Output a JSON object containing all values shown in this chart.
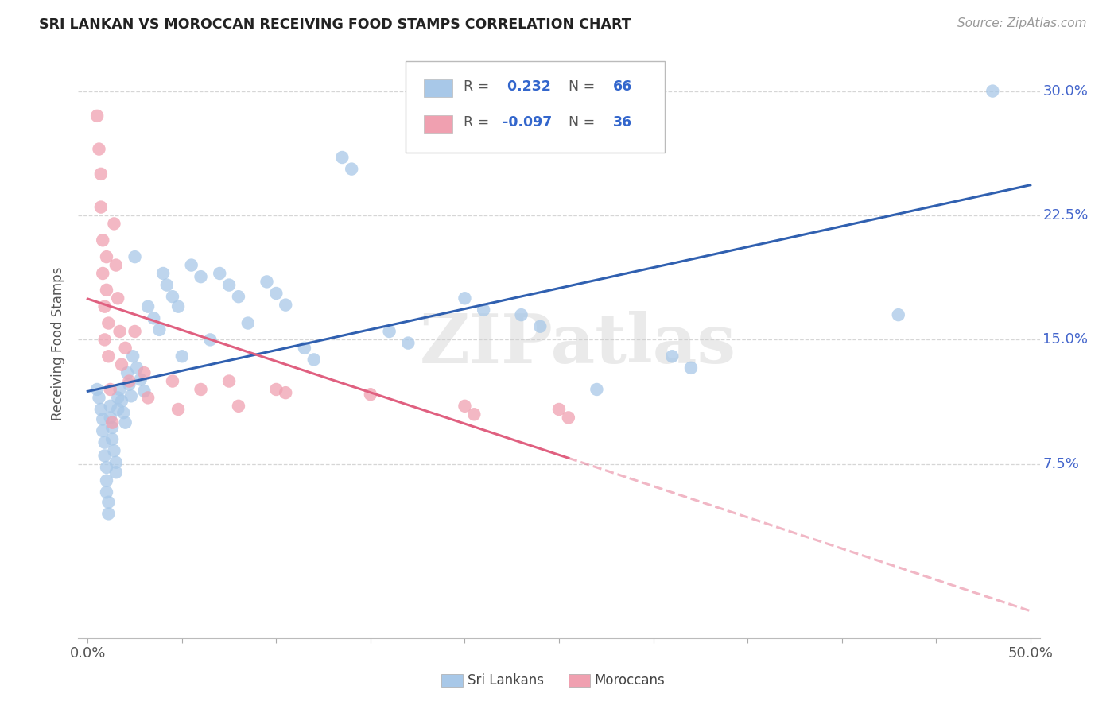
{
  "title": "SRI LANKAN VS MOROCCAN RECEIVING FOOD STAMPS CORRELATION CHART",
  "source": "Source: ZipAtlas.com",
  "ylabel": "Receiving Food Stamps",
  "xlim": [
    0.0,
    0.5
  ],
  "ylim": [
    -0.03,
    0.325
  ],
  "ytick_vals": [
    0.075,
    0.15,
    0.225,
    0.3
  ],
  "ytick_labels": [
    "7.5%",
    "15.0%",
    "22.5%",
    "30.0%"
  ],
  "xtick_vals": [
    0.0,
    0.05,
    0.1,
    0.15,
    0.2,
    0.25,
    0.3,
    0.35,
    0.4,
    0.45,
    0.5
  ],
  "xtick_label_0": "0.0%",
  "xtick_label_last": "50.0%",
  "sri_lankan_color": "#a8c8e8",
  "moroccan_color": "#f0a0b0",
  "sri_lankan_line_color": "#3060b0",
  "moroccan_line_color": "#e06080",
  "watermark": "ZIPatlas",
  "background_color": "#ffffff",
  "grid_color": "#cccccc",
  "right_label_color": "#4466cc",
  "sri_lankans_N": 66,
  "moroccan_N": 36,
  "sl_x": [
    0.005,
    0.006,
    0.007,
    0.008,
    0.008,
    0.009,
    0.009,
    0.01,
    0.01,
    0.01,
    0.011,
    0.011,
    0.012,
    0.012,
    0.013,
    0.013,
    0.014,
    0.015,
    0.015,
    0.016,
    0.016,
    0.017,
    0.018,
    0.019,
    0.02,
    0.021,
    0.022,
    0.023,
    0.024,
    0.025,
    0.026,
    0.028,
    0.03,
    0.032,
    0.035,
    0.038,
    0.04,
    0.042,
    0.045,
    0.048,
    0.05,
    0.055,
    0.06,
    0.065,
    0.07,
    0.075,
    0.08,
    0.085,
    0.095,
    0.1,
    0.105,
    0.115,
    0.12,
    0.135,
    0.14,
    0.16,
    0.17,
    0.2,
    0.21,
    0.23,
    0.24,
    0.27,
    0.31,
    0.32,
    0.43,
    0.48
  ],
  "sl_y": [
    0.12,
    0.115,
    0.108,
    0.102,
    0.095,
    0.088,
    0.08,
    0.073,
    0.065,
    0.058,
    0.052,
    0.045,
    0.11,
    0.103,
    0.097,
    0.09,
    0.083,
    0.076,
    0.07,
    0.115,
    0.108,
    0.12,
    0.113,
    0.106,
    0.1,
    0.13,
    0.123,
    0.116,
    0.14,
    0.2,
    0.133,
    0.126,
    0.119,
    0.17,
    0.163,
    0.156,
    0.19,
    0.183,
    0.176,
    0.17,
    0.14,
    0.195,
    0.188,
    0.15,
    0.19,
    0.183,
    0.176,
    0.16,
    0.185,
    0.178,
    0.171,
    0.145,
    0.138,
    0.26,
    0.253,
    0.155,
    0.148,
    0.175,
    0.168,
    0.165,
    0.158,
    0.12,
    0.14,
    0.133,
    0.165,
    0.3
  ],
  "mo_x": [
    0.005,
    0.006,
    0.007,
    0.007,
    0.008,
    0.008,
    0.009,
    0.009,
    0.01,
    0.01,
    0.011,
    0.011,
    0.012,
    0.013,
    0.014,
    0.015,
    0.016,
    0.017,
    0.018,
    0.02,
    0.022,
    0.025,
    0.03,
    0.032,
    0.045,
    0.048,
    0.06,
    0.075,
    0.08,
    0.1,
    0.105,
    0.15,
    0.2,
    0.205,
    0.25,
    0.255
  ],
  "mo_y": [
    0.285,
    0.265,
    0.25,
    0.23,
    0.21,
    0.19,
    0.17,
    0.15,
    0.2,
    0.18,
    0.16,
    0.14,
    0.12,
    0.1,
    0.22,
    0.195,
    0.175,
    0.155,
    0.135,
    0.145,
    0.125,
    0.155,
    0.13,
    0.115,
    0.125,
    0.108,
    0.12,
    0.125,
    0.11,
    0.12,
    0.118,
    0.117,
    0.11,
    0.105,
    0.108,
    0.103
  ]
}
